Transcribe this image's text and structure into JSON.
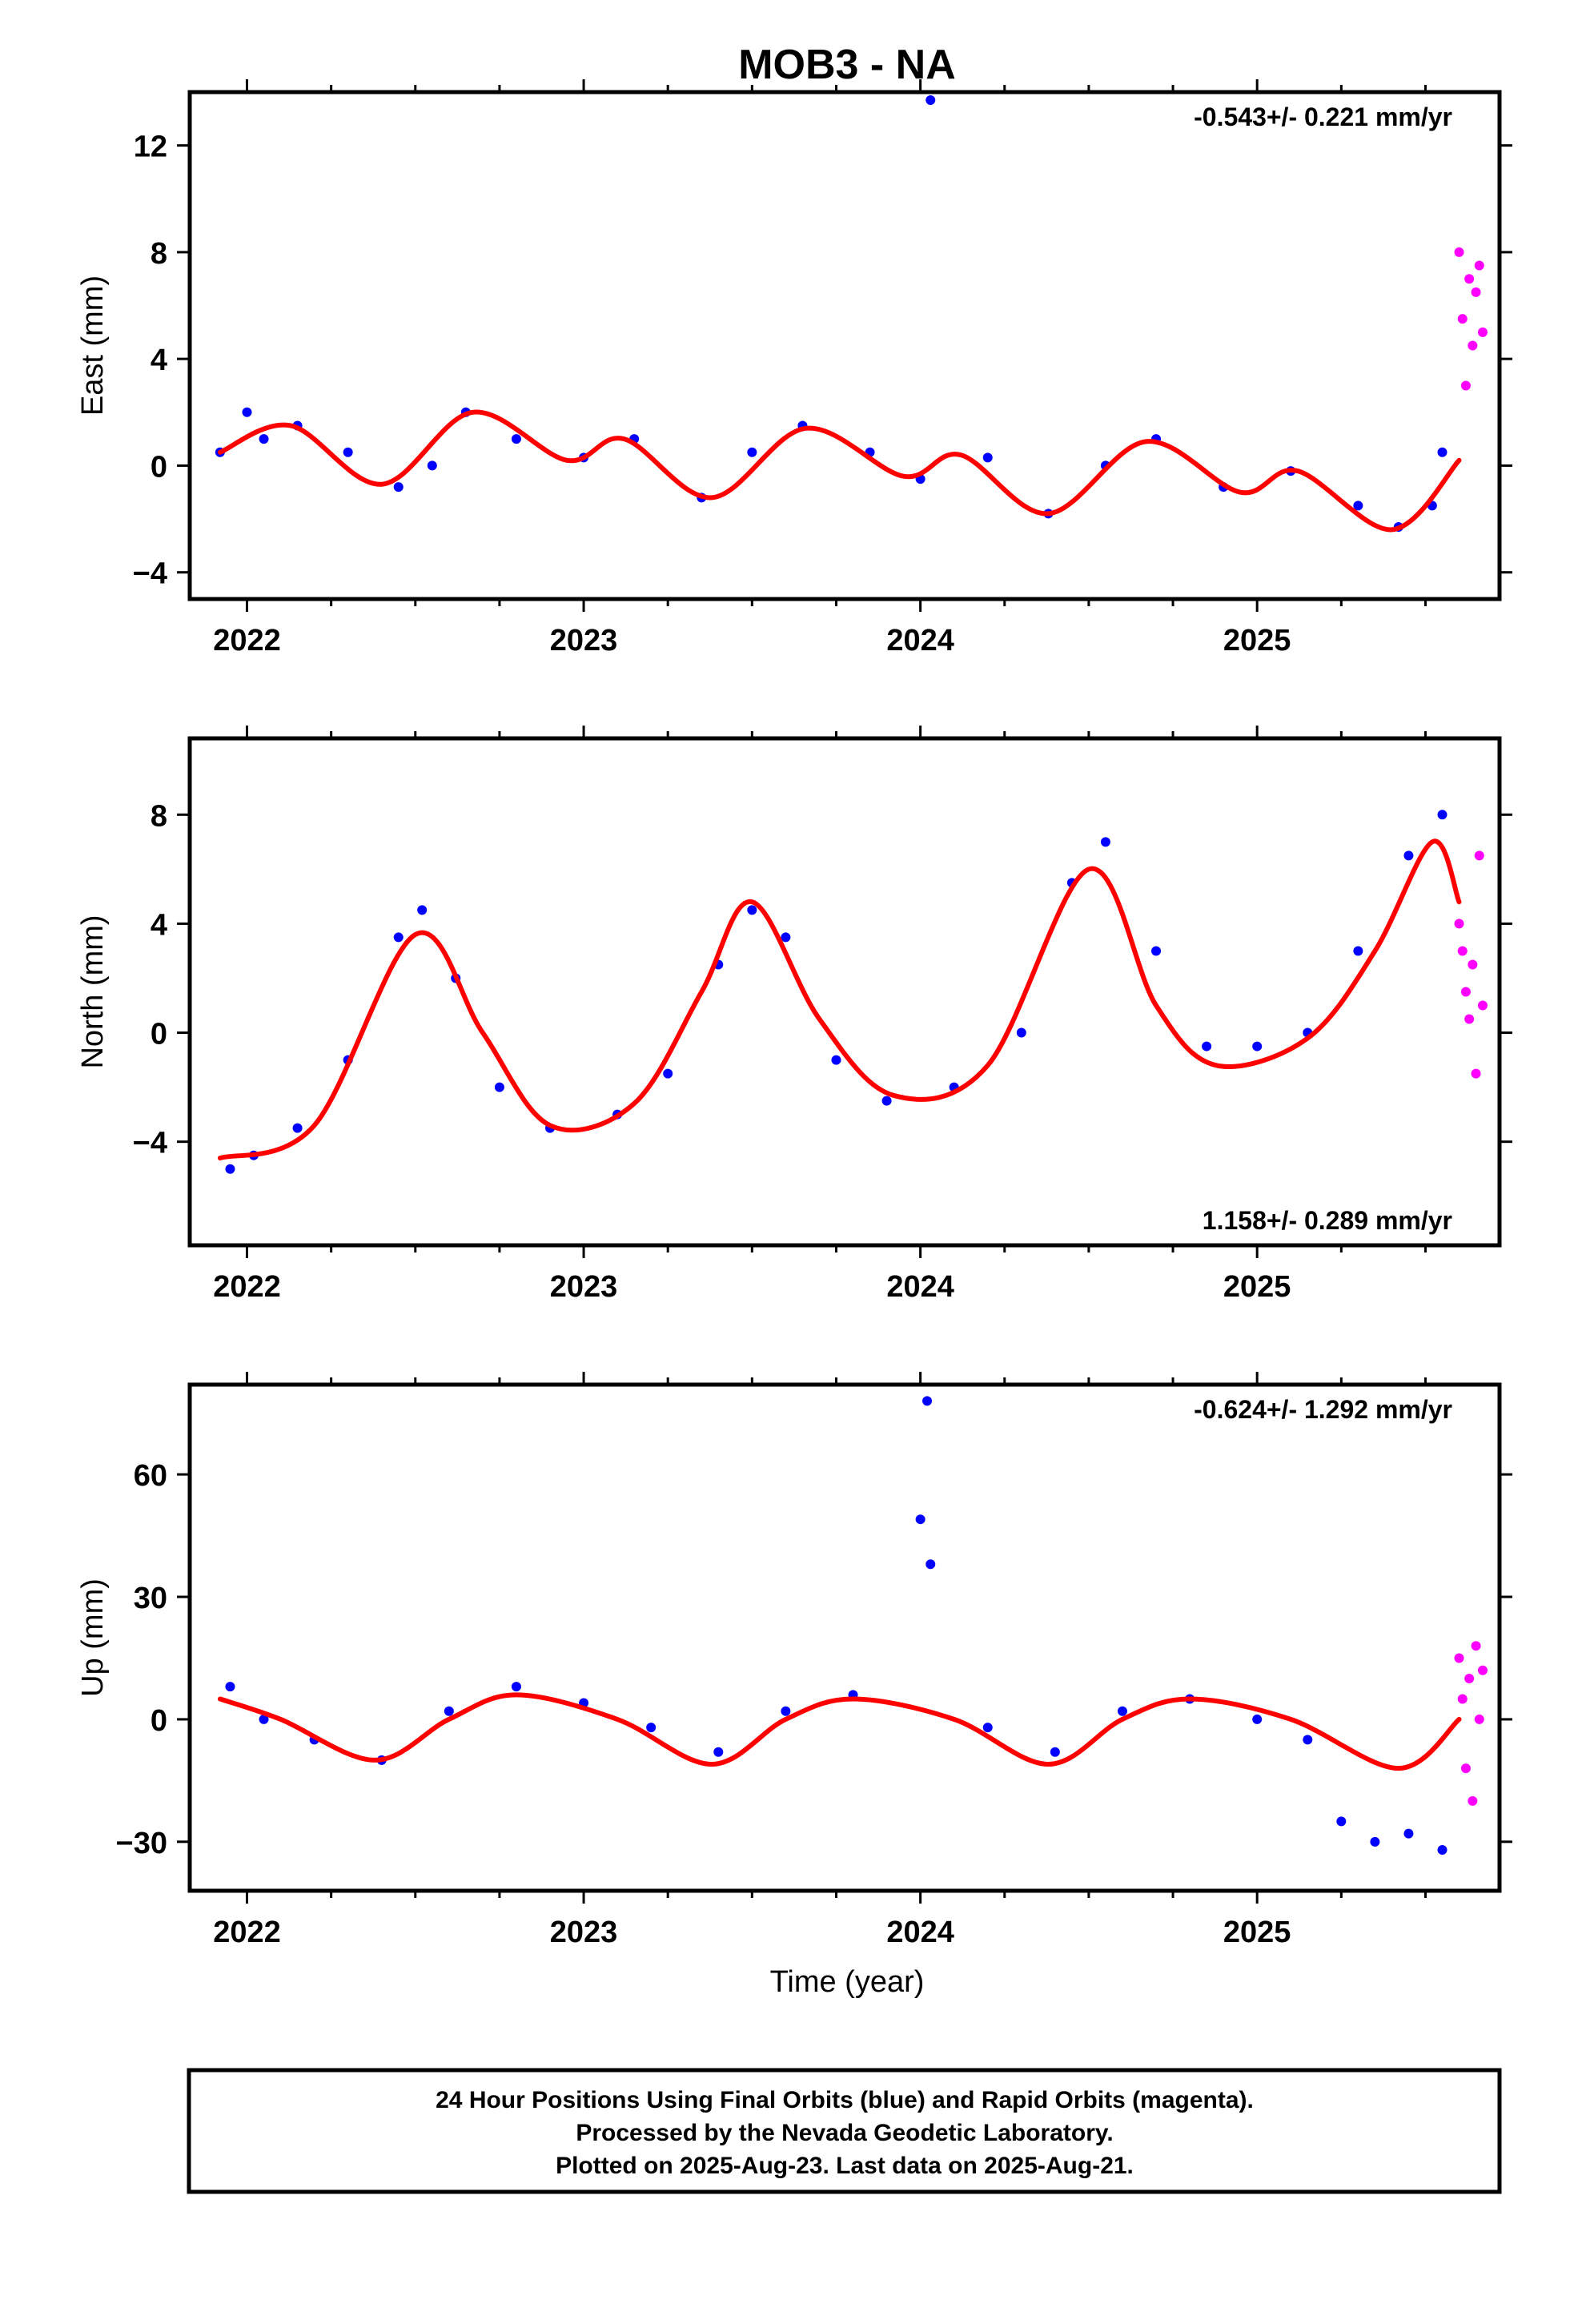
{
  "title": "MOB3 - NA",
  "xlabel": "Time (year)",
  "footer": [
    "24 Hour Positions Using Final Orbits (blue) and Rapid Orbits (magenta).",
    "Processed by the Nevada Geodetic Laboratory.",
    "Plotted on 2025-Aug-23. Last data on 2025-Aug-21."
  ],
  "colors": {
    "final": "#0000ff",
    "rapid": "#ff00ff",
    "model": "#ff0000",
    "frame": "#000000"
  },
  "chart_data": [
    {
      "type": "scatter",
      "ylabel": "East (mm)",
      "rate_label": "-0.543+/- 0.221 mm/yr",
      "rate_position": "top-right",
      "xlim": [
        2021.83,
        2025.72
      ],
      "ylim": [
        -5.0,
        14.0
      ],
      "xticks": [
        2022,
        2023,
        2024,
        2025
      ],
      "yticks": [
        -4,
        0,
        4,
        8,
        12
      ],
      "series_points": [
        {
          "x": 2021.92,
          "y": 0.5
        },
        {
          "x": 2022.0,
          "y": 2.0
        },
        {
          "x": 2022.05,
          "y": 1.0
        },
        {
          "x": 2022.15,
          "y": 1.5
        },
        {
          "x": 2022.3,
          "y": 0.5
        },
        {
          "x": 2022.45,
          "y": -0.8
        },
        {
          "x": 2022.55,
          "y": 0.0
        },
        {
          "x": 2022.65,
          "y": 2.0
        },
        {
          "x": 2022.8,
          "y": 1.0
        },
        {
          "x": 2023.0,
          "y": 0.3
        },
        {
          "x": 2023.15,
          "y": 1.0
        },
        {
          "x": 2023.35,
          "y": -1.2
        },
        {
          "x": 2023.5,
          "y": 0.5
        },
        {
          "x": 2023.65,
          "y": 1.5
        },
        {
          "x": 2023.85,
          "y": 0.5
        },
        {
          "x": 2024.0,
          "y": -0.5
        },
        {
          "x": 2024.03,
          "y": 13.7
        },
        {
          "x": 2024.2,
          "y": 0.3
        },
        {
          "x": 2024.38,
          "y": -1.8
        },
        {
          "x": 2024.55,
          "y": 0.0
        },
        {
          "x": 2024.7,
          "y": 1.0
        },
        {
          "x": 2024.9,
          "y": -0.8
        },
        {
          "x": 2025.1,
          "y": -0.2
        },
        {
          "x": 2025.3,
          "y": -1.5
        },
        {
          "x": 2025.42,
          "y": -2.3
        },
        {
          "x": 2025.52,
          "y": -1.5
        },
        {
          "x": 2025.55,
          "y": 0.5
        }
      ],
      "rapid_points": [
        {
          "x": 2025.6,
          "y": 8.0
        },
        {
          "x": 2025.61,
          "y": 5.5
        },
        {
          "x": 2025.62,
          "y": 3.0
        },
        {
          "x": 2025.63,
          "y": 7.0
        },
        {
          "x": 2025.64,
          "y": 4.5
        },
        {
          "x": 2025.65,
          "y": 6.5
        },
        {
          "x": 2025.66,
          "y": 7.5
        },
        {
          "x": 2025.67,
          "y": 5.0
        }
      ],
      "model_curve": [
        {
          "x": 2021.92,
          "y": 0.5
        },
        {
          "x": 2022.13,
          "y": 1.5
        },
        {
          "x": 2022.4,
          "y": -0.7
        },
        {
          "x": 2022.67,
          "y": 2.0
        },
        {
          "x": 2022.95,
          "y": 0.2
        },
        {
          "x": 2023.12,
          "y": 1.0
        },
        {
          "x": 2023.38,
          "y": -1.2
        },
        {
          "x": 2023.66,
          "y": 1.4
        },
        {
          "x": 2023.95,
          "y": -0.4
        },
        {
          "x": 2024.12,
          "y": 0.4
        },
        {
          "x": 2024.38,
          "y": -1.8
        },
        {
          "x": 2024.67,
          "y": 0.9
        },
        {
          "x": 2024.95,
          "y": -1.0
        },
        {
          "x": 2025.12,
          "y": -0.2
        },
        {
          "x": 2025.4,
          "y": -2.4
        },
        {
          "x": 2025.6,
          "y": 0.2
        }
      ]
    },
    {
      "type": "scatter",
      "ylabel": "North (mm)",
      "rate_label": "1.158+/- 0.289 mm/yr",
      "rate_position": "bottom-right",
      "xlim": [
        2021.83,
        2025.72
      ],
      "ylim": [
        -7.8,
        10.8
      ],
      "xticks": [
        2022,
        2023,
        2024,
        2025
      ],
      "yticks": [
        -4,
        0,
        4,
        8
      ],
      "series_points": [
        {
          "x": 2021.95,
          "y": -5.0
        },
        {
          "x": 2022.02,
          "y": -4.5
        },
        {
          "x": 2022.15,
          "y": -3.5
        },
        {
          "x": 2022.3,
          "y": -1.0
        },
        {
          "x": 2022.45,
          "y": 3.5
        },
        {
          "x": 2022.52,
          "y": 4.5
        },
        {
          "x": 2022.62,
          "y": 2.0
        },
        {
          "x": 2022.75,
          "y": -2.0
        },
        {
          "x": 2022.9,
          "y": -3.5
        },
        {
          "x": 2023.1,
          "y": -3.0
        },
        {
          "x": 2023.25,
          "y": -1.5
        },
        {
          "x": 2023.4,
          "y": 2.5
        },
        {
          "x": 2023.5,
          "y": 4.5
        },
        {
          "x": 2023.6,
          "y": 3.5
        },
        {
          "x": 2023.75,
          "y": -1.0
        },
        {
          "x": 2023.9,
          "y": -2.5
        },
        {
          "x": 2024.1,
          "y": -2.0
        },
        {
          "x": 2024.3,
          "y": 0.0
        },
        {
          "x": 2024.45,
          "y": 5.5
        },
        {
          "x": 2024.55,
          "y": 7.0
        },
        {
          "x": 2024.7,
          "y": 3.0
        },
        {
          "x": 2024.85,
          "y": -0.5
        },
        {
          "x": 2025.0,
          "y": -0.5
        },
        {
          "x": 2025.15,
          "y": 0.0
        },
        {
          "x": 2025.3,
          "y": 3.0
        },
        {
          "x": 2025.45,
          "y": 6.5
        },
        {
          "x": 2025.55,
          "y": 8.0
        }
      ],
      "rapid_points": [
        {
          "x": 2025.6,
          "y": 4.0
        },
        {
          "x": 2025.61,
          "y": 3.0
        },
        {
          "x": 2025.62,
          "y": 1.5
        },
        {
          "x": 2025.63,
          "y": 0.5
        },
        {
          "x": 2025.64,
          "y": 2.5
        },
        {
          "x": 2025.65,
          "y": -1.5
        },
        {
          "x": 2025.66,
          "y": 6.5
        },
        {
          "x": 2025.67,
          "y": 1.0
        }
      ],
      "model_curve": [
        {
          "x": 2021.92,
          "y": -4.6
        },
        {
          "x": 2022.2,
          "y": -3.4
        },
        {
          "x": 2022.5,
          "y": 3.6
        },
        {
          "x": 2022.7,
          "y": 0.0
        },
        {
          "x": 2022.9,
          "y": -3.4
        },
        {
          "x": 2023.15,
          "y": -2.6
        },
        {
          "x": 2023.35,
          "y": 1.5
        },
        {
          "x": 2023.5,
          "y": 4.8
        },
        {
          "x": 2023.7,
          "y": 0.5
        },
        {
          "x": 2023.92,
          "y": -2.3
        },
        {
          "x": 2024.2,
          "y": -1.2
        },
        {
          "x": 2024.5,
          "y": 6.0
        },
        {
          "x": 2024.7,
          "y": 1.0
        },
        {
          "x": 2024.88,
          "y": -1.2
        },
        {
          "x": 2025.15,
          "y": -0.2
        },
        {
          "x": 2025.35,
          "y": 3.0
        },
        {
          "x": 2025.52,
          "y": 7.0
        },
        {
          "x": 2025.6,
          "y": 4.8
        }
      ]
    },
    {
      "type": "scatter",
      "ylabel": "Up (mm)",
      "rate_label": "-0.624+/- 1.292 mm/yr",
      "rate_position": "top-right",
      "xlim": [
        2021.83,
        2025.72
      ],
      "ylim": [
        -42,
        82
      ],
      "xticks": [
        2022,
        2023,
        2024,
        2025
      ],
      "yticks": [
        -30,
        0,
        30,
        60
      ],
      "series_points": [
        {
          "x": 2021.95,
          "y": 8.0
        },
        {
          "x": 2022.05,
          "y": 0.0
        },
        {
          "x": 2022.2,
          "y": -5.0
        },
        {
          "x": 2022.4,
          "y": -10.0
        },
        {
          "x": 2022.6,
          "y": 2.0
        },
        {
          "x": 2022.8,
          "y": 8.0
        },
        {
          "x": 2023.0,
          "y": 4.0
        },
        {
          "x": 2023.2,
          "y": -2.0
        },
        {
          "x": 2023.4,
          "y": -8.0
        },
        {
          "x": 2023.6,
          "y": 2.0
        },
        {
          "x": 2023.8,
          "y": 6.0
        },
        {
          "x": 2024.0,
          "y": 49.0
        },
        {
          "x": 2024.02,
          "y": 78.0
        },
        {
          "x": 2024.03,
          "y": 38.0
        },
        {
          "x": 2024.2,
          "y": -2.0
        },
        {
          "x": 2024.4,
          "y": -8.0
        },
        {
          "x": 2024.6,
          "y": 2.0
        },
        {
          "x": 2024.8,
          "y": 5.0
        },
        {
          "x": 2025.0,
          "y": 0.0
        },
        {
          "x": 2025.15,
          "y": -5.0
        },
        {
          "x": 2025.25,
          "y": -25.0
        },
        {
          "x": 2025.35,
          "y": -30.0
        },
        {
          "x": 2025.45,
          "y": -28.0
        },
        {
          "x": 2025.55,
          "y": -32.0
        }
      ],
      "rapid_points": [
        {
          "x": 2025.6,
          "y": 15.0
        },
        {
          "x": 2025.61,
          "y": 5.0
        },
        {
          "x": 2025.62,
          "y": -12.0
        },
        {
          "x": 2025.63,
          "y": 10.0
        },
        {
          "x": 2025.64,
          "y": -20.0
        },
        {
          "x": 2025.65,
          "y": 18.0
        },
        {
          "x": 2025.66,
          "y": 0.0
        },
        {
          "x": 2025.67,
          "y": 12.0
        }
      ],
      "model_curve": [
        {
          "x": 2021.92,
          "y": 5.0
        },
        {
          "x": 2022.1,
          "y": 0.0
        },
        {
          "x": 2022.38,
          "y": -10.0
        },
        {
          "x": 2022.6,
          "y": 0.0
        },
        {
          "x": 2022.8,
          "y": 6.0
        },
        {
          "x": 2023.1,
          "y": 0.0
        },
        {
          "x": 2023.38,
          "y": -11.0
        },
        {
          "x": 2023.6,
          "y": 0.0
        },
        {
          "x": 2023.8,
          "y": 5.0
        },
        {
          "x": 2024.1,
          "y": 0.0
        },
        {
          "x": 2024.38,
          "y": -11.0
        },
        {
          "x": 2024.6,
          "y": 0.0
        },
        {
          "x": 2024.8,
          "y": 5.0
        },
        {
          "x": 2025.1,
          "y": 0.0
        },
        {
          "x": 2025.42,
          "y": -12.0
        },
        {
          "x": 2025.6,
          "y": 0.0
        }
      ]
    }
  ]
}
